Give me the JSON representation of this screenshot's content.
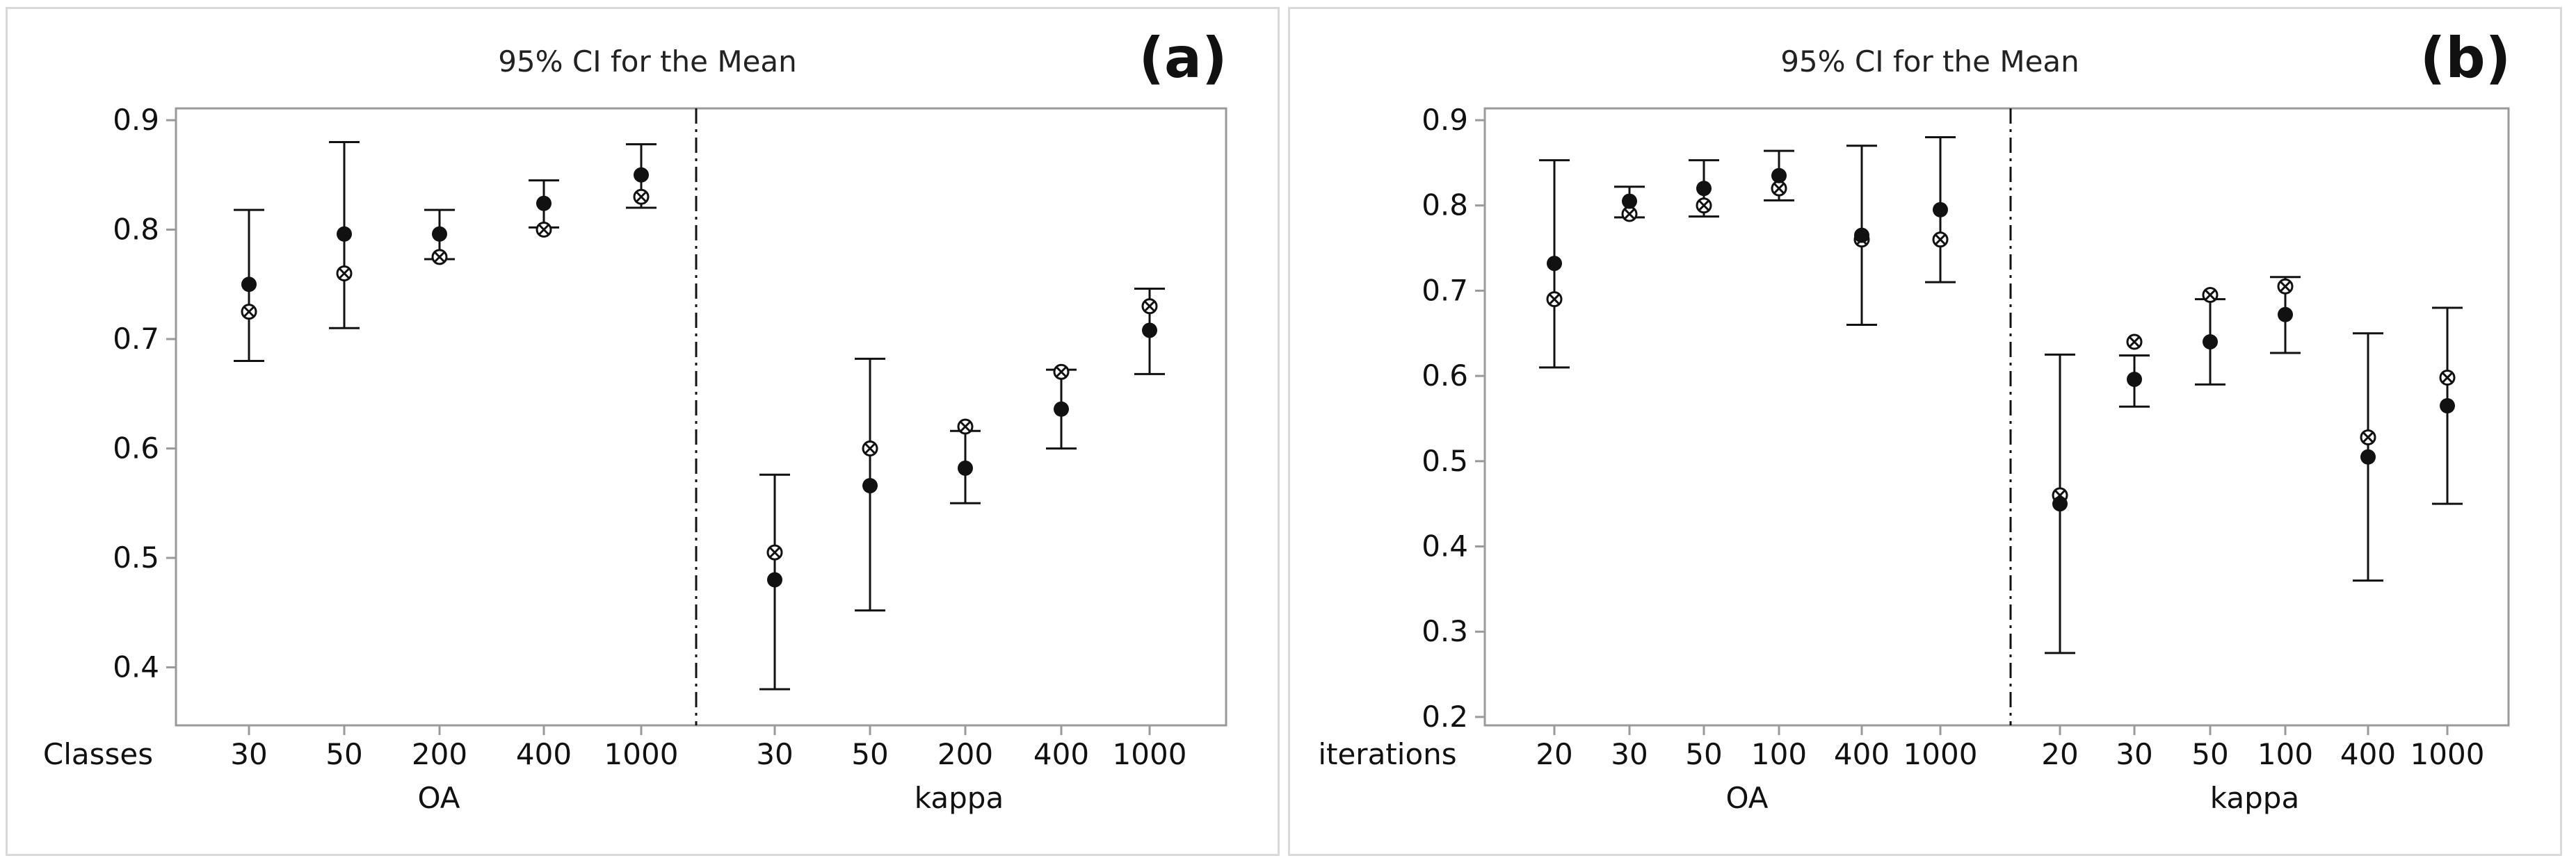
{
  "chart_data": [
    {
      "panel_label": "(a)",
      "type": "errorbar",
      "title": "95% CI for the Mean",
      "row_label": "Classes",
      "ylim": [
        0.35,
        0.9
      ],
      "yticks": [
        "0.9",
        "0.8",
        "0.7",
        "0.6",
        "0.5",
        "0.4"
      ],
      "groups": [
        {
          "name": "OA",
          "categories": [
            "30",
            "50",
            "200",
            "400",
            "1000"
          ],
          "mean": [
            0.75,
            0.796,
            0.796,
            0.824,
            0.85
          ],
          "median": [
            0.725,
            0.76,
            0.775,
            0.8,
            0.83
          ],
          "ci_low": [
            0.68,
            0.71,
            0.773,
            0.802,
            0.82
          ],
          "ci_high": [
            0.818,
            0.88,
            0.818,
            0.845,
            0.878
          ]
        },
        {
          "name": "kappa",
          "categories": [
            "30",
            "50",
            "200",
            "400",
            "1000"
          ],
          "mean": [
            0.48,
            0.566,
            0.582,
            0.636,
            0.708
          ],
          "median": [
            0.505,
            0.6,
            0.62,
            0.67,
            0.73
          ],
          "ci_low": [
            0.38,
            0.452,
            0.55,
            0.6,
            0.668
          ],
          "ci_high": [
            0.576,
            0.682,
            0.616,
            0.672,
            0.746
          ]
        }
      ]
    },
    {
      "panel_label": "(b)",
      "type": "errorbar",
      "title": "95% CI for the Mean",
      "row_label": "iterations",
      "ylim": [
        0.19,
        0.9
      ],
      "yticks": [
        "0.9",
        "0.8",
        "0.7",
        "0.6",
        "0.5",
        "0.4",
        "0.3",
        "0.2"
      ],
      "groups": [
        {
          "name": "OA",
          "categories": [
            "20",
            "30",
            "50",
            "100",
            "400",
            "1000"
          ],
          "mean": [
            0.732,
            0.805,
            0.82,
            0.835,
            0.765,
            0.795
          ],
          "median": [
            0.69,
            0.79,
            0.8,
            0.82,
            0.76,
            0.76
          ],
          "ci_low": [
            0.61,
            0.786,
            0.787,
            0.806,
            0.66,
            0.71
          ],
          "ci_high": [
            0.853,
            0.822,
            0.853,
            0.864,
            0.87,
            0.88
          ]
        },
        {
          "name": "kappa",
          "categories": [
            "20",
            "30",
            "50",
            "100",
            "400",
            "1000"
          ],
          "mean": [
            0.45,
            0.596,
            0.64,
            0.672,
            0.505,
            0.565
          ],
          "median": [
            0.46,
            0.64,
            0.695,
            0.705,
            0.528,
            0.598
          ],
          "ci_low": [
            0.275,
            0.564,
            0.59,
            0.627,
            0.36,
            0.45
          ],
          "ci_high": [
            0.625,
            0.624,
            0.69,
            0.716,
            0.65,
            0.68
          ]
        }
      ]
    }
  ],
  "colors": {
    "axis": "#9a9a9a",
    "ink": "#111111",
    "border": "#d9d9d9"
  }
}
